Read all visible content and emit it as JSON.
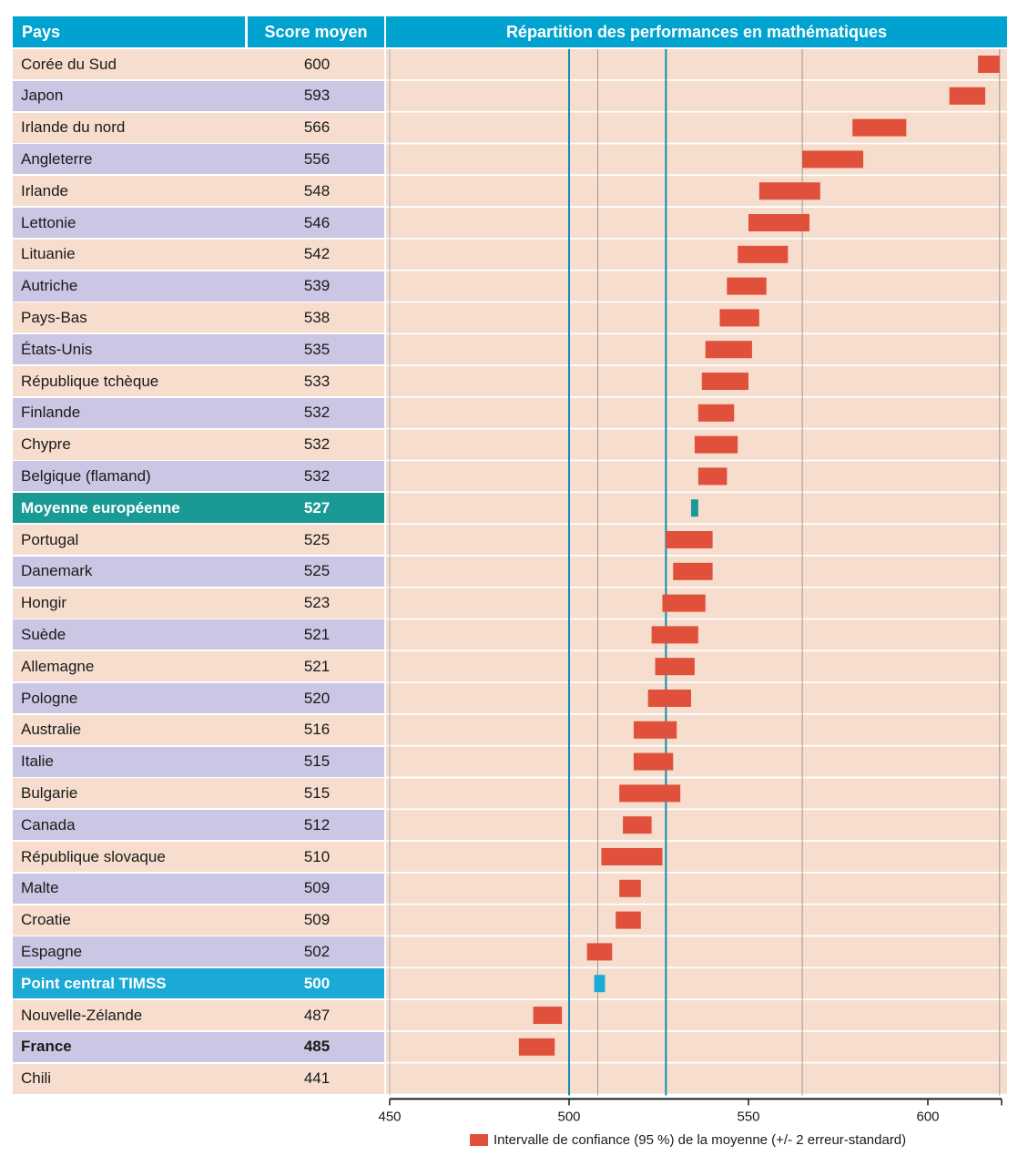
{
  "header": {
    "pays": "Pays",
    "score": "Score moyen",
    "chart_title": "Répartition des performances en mathématiques"
  },
  "legend": {
    "label": "Intervalle de confiance (95 %) de la moyenne (+/- 2 erreur-standard)",
    "color": "#e0503a"
  },
  "colors": {
    "bar": "#e0503a",
    "european_mean": "#1a9a95",
    "timss_center": "#1ba9d6",
    "row_peach": "#f6ddcd",
    "row_lavender": "#cac6e3",
    "vline": "#0c8fb0"
  },
  "rows": [
    {
      "name": "Corée du Sud",
      "score": "600",
      "style": "peach"
    },
    {
      "name": "Japon",
      "score": "593",
      "style": "lav"
    },
    {
      "name": "Irlande du nord",
      "score": "566",
      "style": "peach"
    },
    {
      "name": "Angleterre",
      "score": "556",
      "style": "lav"
    },
    {
      "name": "Irlande",
      "score": "548",
      "style": "peach"
    },
    {
      "name": "Lettonie",
      "score": "546",
      "style": "lav"
    },
    {
      "name": "Lituanie",
      "score": "542",
      "style": "peach"
    },
    {
      "name": "Autriche",
      "score": "539",
      "style": "lav"
    },
    {
      "name": "Pays-Bas",
      "score": "538",
      "style": "peach"
    },
    {
      "name": "États-Unis",
      "score": "535",
      "style": "lav"
    },
    {
      "name": "République tchèque",
      "score": "533",
      "style": "peach"
    },
    {
      "name": "Finlande",
      "score": "532",
      "style": "lav"
    },
    {
      "name": "Chypre",
      "score": "532",
      "style": "peach"
    },
    {
      "name": "Belgique (flamand)",
      "score": "532",
      "style": "lav"
    },
    {
      "name": "Moyenne européenne",
      "score": "527",
      "style": "teal"
    },
    {
      "name": "Portugal",
      "score": "525",
      "style": "peach"
    },
    {
      "name": "Danemark",
      "score": "525",
      "style": "lav"
    },
    {
      "name": "Hongir",
      "score": "523",
      "style": "peach"
    },
    {
      "name": "Suède",
      "score": "521",
      "style": "lav"
    },
    {
      "name": "Allemagne",
      "score": "521",
      "style": "peach"
    },
    {
      "name": "Pologne",
      "score": "520",
      "style": "lav"
    },
    {
      "name": "Australie",
      "score": "516",
      "style": "peach"
    },
    {
      "name": "Italie",
      "score": "515",
      "style": "lav"
    },
    {
      "name": "Bulgarie",
      "score": "515",
      "style": "peach"
    },
    {
      "name": "Canada",
      "score": "512",
      "style": "lav"
    },
    {
      "name": "République slovaque",
      "score": "510",
      "style": "peach"
    },
    {
      "name": "Malte",
      "score": "509",
      "style": "lav"
    },
    {
      "name": "Croatie",
      "score": "509",
      "style": "peach"
    },
    {
      "name": "Espagne",
      "score": "502",
      "style": "lav"
    },
    {
      "name": "Point central TIMSS",
      "score": "500",
      "style": "blue"
    },
    {
      "name": "Nouvelle-Zélande",
      "score": "487",
      "style": "peach"
    },
    {
      "name": "France",
      "score": "485",
      "style": "lav",
      "bold": true
    },
    {
      "name": "Chili",
      "score": "441",
      "style": "peach"
    }
  ],
  "chart_data": {
    "type": "bar",
    "subtype": "floating-interval",
    "title": "Répartition des performances en mathématiques",
    "xlim": [
      450,
      622
    ],
    "xticks": [
      450,
      500,
      550,
      600
    ],
    "reference_lines": [
      500,
      527
    ],
    "grid_lines": [
      508,
      565,
      620
    ],
    "categories": [
      "Corée du Sud",
      "Japon",
      "Irlande du nord",
      "Angleterre",
      "Irlande",
      "Lettonie",
      "Lituanie",
      "Autriche",
      "Pays-Bas",
      "États-Unis",
      "République tchèque",
      "Finlande",
      "Chypre",
      "Belgique (flamand)",
      "Moyenne européenne",
      "Portugal",
      "Danemark",
      "Hongir",
      "Suède",
      "Allemagne",
      "Pologne",
      "Australie",
      "Italie",
      "Bulgarie",
      "Canada",
      "République slovaque",
      "Malte",
      "Croatie",
      "Espagne",
      "Point central TIMSS",
      "Nouvelle-Zélande",
      "France",
      "Chili"
    ],
    "intervals": [
      [
        614,
        620
      ],
      [
        606,
        616
      ],
      [
        579,
        594
      ],
      [
        565,
        582
      ],
      [
        553,
        570
      ],
      [
        550,
        567
      ],
      [
        547,
        561
      ],
      [
        544,
        555
      ],
      [
        542,
        553
      ],
      [
        538,
        551
      ],
      [
        537,
        550
      ],
      [
        536,
        546
      ],
      [
        535,
        547
      ],
      [
        536,
        544
      ],
      [
        534,
        536
      ],
      [
        527,
        540
      ],
      [
        529,
        540
      ],
      [
        526,
        538
      ],
      [
        523,
        536
      ],
      [
        524,
        535
      ],
      [
        522,
        534
      ],
      [
        518,
        530
      ],
      [
        518,
        529
      ],
      [
        514,
        531
      ],
      [
        515,
        523
      ],
      [
        509,
        526
      ],
      [
        514,
        520
      ],
      [
        513,
        520
      ],
      [
        505,
        512
      ],
      [
        507,
        510
      ],
      [
        490,
        498
      ],
      [
        486,
        496
      ],
      [
        null,
        null
      ]
    ],
    "highlight": {
      "Moyenne européenne": "teal",
      "Point central TIMSS": "blue"
    },
    "legend": [
      "Intervalle de confiance (95 %) de la moyenne (+/- 2 erreur-standard)"
    ]
  }
}
